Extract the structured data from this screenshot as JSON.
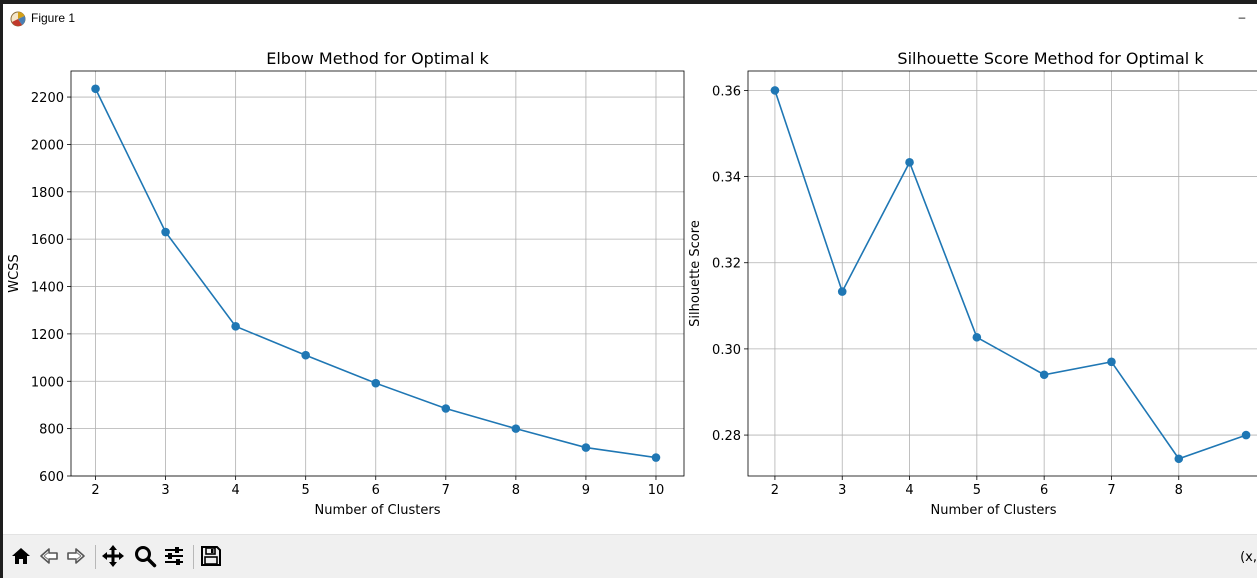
{
  "window": {
    "title": "Figure 1",
    "minimize_label": "–"
  },
  "toolbar": {
    "buttons": [
      {
        "name": "home-button",
        "icon": "home-icon"
      },
      {
        "name": "back-button",
        "icon": "back-arrow-icon"
      },
      {
        "name": "forward-button",
        "icon": "forward-arrow-icon"
      },
      {
        "name": "pan-button",
        "icon": "move-icon"
      },
      {
        "name": "zoom-button",
        "icon": "magnifier-icon"
      },
      {
        "name": "configure-subplots-button",
        "icon": "sliders-icon"
      },
      {
        "name": "save-button",
        "icon": "floppy-disk-icon"
      }
    ],
    "coords": "(x,"
  },
  "colors": {
    "series": "#1f77b4",
    "grid": "#b0b0b0",
    "toolbar": "#f0f0f0"
  },
  "chart_data": [
    {
      "type": "line",
      "title": "Elbow Method for Optimal k",
      "xlabel": "Number of Clusters",
      "ylabel": "WCSS",
      "x": [
        2,
        3,
        4,
        5,
        6,
        7,
        8,
        9,
        10
      ],
      "series": [
        {
          "values": [
            2235,
            1630,
            1232,
            1110,
            992,
            885,
            800,
            720,
            678
          ]
        }
      ],
      "xlim": [
        1.65,
        10.4
      ],
      "ylim": [
        600,
        2310
      ],
      "xticks": [
        2,
        3,
        4,
        5,
        6,
        7,
        8,
        9,
        10
      ],
      "yticks": [
        600,
        800,
        1000,
        1200,
        1400,
        1600,
        1800,
        2000,
        2200
      ],
      "grid": true,
      "marker": "circle"
    },
    {
      "type": "line",
      "title": "Silhouette Score Method for Optimal k",
      "xlabel": "Number of Clusters",
      "ylabel": "Silhouette Score",
      "x": [
        2,
        3,
        4,
        5,
        6,
        7,
        8,
        9
      ],
      "series": [
        {
          "values": [
            0.36,
            0.3133,
            0.3433,
            0.3027,
            0.294,
            0.297,
            0.2745,
            0.28
          ]
        }
      ],
      "xlim": [
        1.6,
        9.4
      ],
      "ylim": [
        0.2705,
        0.3645
      ],
      "xticks": [
        2,
        3,
        4,
        5,
        6,
        7,
        8
      ],
      "yticks": [
        "0.28",
        "0.30",
        "0.32",
        "0.34",
        "0.36"
      ],
      "grid": true,
      "marker": "circle"
    }
  ]
}
